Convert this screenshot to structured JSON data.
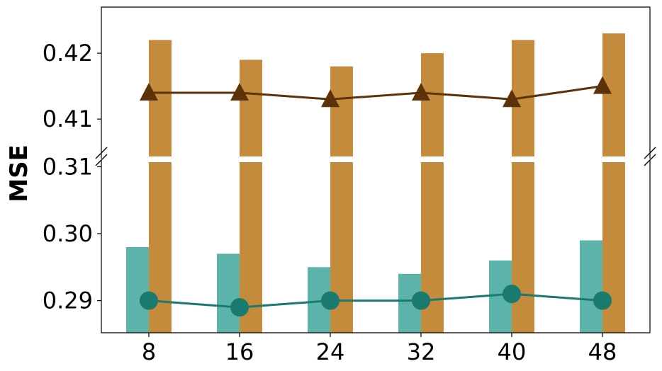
{
  "chart_data": {
    "type": "bar",
    "ylabel": "MSE",
    "categories": [
      "8",
      "16",
      "24",
      "32",
      "40",
      "48"
    ],
    "broken_axis": true,
    "ylim_top": [
      0.404,
      0.427
    ],
    "ylim_bottom": [
      0.2852,
      0.311
    ],
    "yticks_top": [
      "0.41",
      "0.42"
    ],
    "yticks_bottom": [
      "0.29",
      "0.30",
      "0.31"
    ],
    "series": [
      {
        "kind": "bar",
        "values": [
          0.298,
          0.297,
          0.295,
          0.294,
          0.296,
          0.299
        ],
        "color": "#5BB3AA"
      },
      {
        "kind": "bar",
        "values": [
          0.422,
          0.419,
          0.418,
          0.42,
          0.422,
          0.423
        ],
        "color": "#C48B3C"
      },
      {
        "kind": "line",
        "marker": "triangle",
        "values": [
          0.414,
          0.414,
          0.413,
          0.414,
          0.413,
          0.415
        ],
        "color": "#5C3208"
      },
      {
        "kind": "line",
        "marker": "circle",
        "values": [
          0.29,
          0.289,
          0.29,
          0.29,
          0.291,
          0.29
        ],
        "color": "#1A7A70"
      }
    ],
    "grid": false,
    "legend": "none"
  }
}
